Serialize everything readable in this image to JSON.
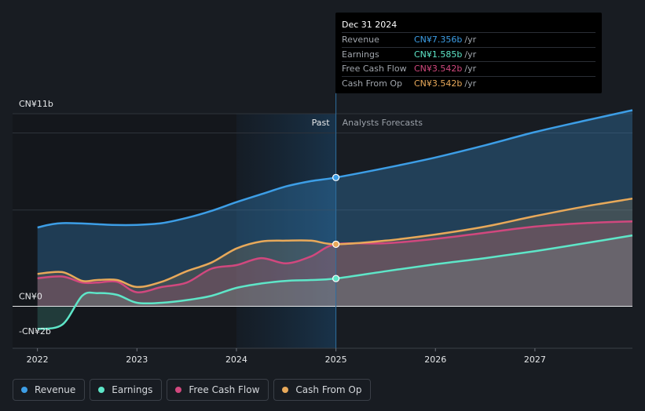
{
  "chart_data": {
    "type": "area",
    "title": "",
    "xlabel": "",
    "ylabel": "",
    "ylim": [
      -2.4,
      11.0
    ],
    "xlim": [
      2021.75,
      2027.98
    ],
    "y_axis_labels": [
      "CN¥11b",
      "CN¥0",
      "-CN¥2b"
    ],
    "y_axis_label_values": [
      11,
      0,
      -2
    ],
    "x_ticks": [
      2022,
      2023,
      2024,
      2025,
      2026,
      2027
    ],
    "x_tick_labels": [
      "2022",
      "2023",
      "2024",
      "2025",
      "2026",
      "2027"
    ],
    "divider_x": 2025.0,
    "highlight_range": [
      2024.0,
      2025.0
    ],
    "past_label": "Past",
    "forecast_label": "Analysts Forecasts",
    "series": [
      {
        "name": "Revenue",
        "color": "#3d9ee6",
        "past": [
          [
            2022.0,
            4.5
          ],
          [
            2022.25,
            4.75
          ],
          [
            2022.75,
            4.65
          ],
          [
            2023.0,
            4.65
          ],
          [
            2023.25,
            4.75
          ],
          [
            2023.5,
            5.05
          ],
          [
            2023.75,
            5.45
          ],
          [
            2024.0,
            5.95
          ],
          [
            2024.25,
            6.4
          ],
          [
            2024.5,
            6.85
          ],
          [
            2024.75,
            7.15
          ],
          [
            2025.0,
            7.356
          ]
        ],
        "forecast": [
          [
            2025.0,
            7.356
          ],
          [
            2025.5,
            7.9
          ],
          [
            2026.0,
            8.5
          ],
          [
            2026.5,
            9.2
          ],
          [
            2027.0,
            9.95
          ],
          [
            2027.5,
            10.6
          ],
          [
            2027.98,
            11.2
          ]
        ]
      },
      {
        "name": "Earnings",
        "color": "#5ee6c8",
        "past": [
          [
            2022.0,
            -1.3
          ],
          [
            2022.25,
            -1.05
          ],
          [
            2022.45,
            0.6
          ],
          [
            2022.6,
            0.75
          ],
          [
            2022.8,
            0.65
          ],
          [
            2023.0,
            0.2
          ],
          [
            2023.25,
            0.2
          ],
          [
            2023.5,
            0.35
          ],
          [
            2023.75,
            0.6
          ],
          [
            2024.0,
            1.05
          ],
          [
            2024.25,
            1.3
          ],
          [
            2024.5,
            1.45
          ],
          [
            2024.75,
            1.5
          ],
          [
            2025.0,
            1.585
          ]
        ],
        "forecast": [
          [
            2025.0,
            1.585
          ],
          [
            2025.5,
            2.0
          ],
          [
            2026.0,
            2.4
          ],
          [
            2026.5,
            2.75
          ],
          [
            2027.0,
            3.15
          ],
          [
            2027.5,
            3.6
          ],
          [
            2027.98,
            4.05
          ]
        ]
      },
      {
        "name": "Free Cash Flow",
        "color": "#d1487e",
        "past": [
          [
            2022.0,
            1.6
          ],
          [
            2022.25,
            1.7
          ],
          [
            2022.45,
            1.35
          ],
          [
            2022.6,
            1.35
          ],
          [
            2022.8,
            1.4
          ],
          [
            2023.0,
            0.8
          ],
          [
            2023.25,
            1.1
          ],
          [
            2023.5,
            1.35
          ],
          [
            2023.75,
            2.15
          ],
          [
            2024.0,
            2.35
          ],
          [
            2024.25,
            2.75
          ],
          [
            2024.5,
            2.45
          ],
          [
            2024.75,
            2.85
          ],
          [
            2025.0,
            3.542
          ]
        ],
        "forecast": [
          [
            2025.0,
            3.542
          ],
          [
            2025.5,
            3.6
          ],
          [
            2026.0,
            3.85
          ],
          [
            2026.5,
            4.2
          ],
          [
            2027.0,
            4.55
          ],
          [
            2027.5,
            4.75
          ],
          [
            2027.98,
            4.85
          ]
        ]
      },
      {
        "name": "Cash From Op",
        "color": "#e8a95a",
        "past": [
          [
            2022.0,
            1.85
          ],
          [
            2022.25,
            1.95
          ],
          [
            2022.45,
            1.45
          ],
          [
            2022.6,
            1.5
          ],
          [
            2022.8,
            1.5
          ],
          [
            2023.0,
            1.1
          ],
          [
            2023.25,
            1.4
          ],
          [
            2023.5,
            2.0
          ],
          [
            2023.75,
            2.5
          ],
          [
            2024.0,
            3.3
          ],
          [
            2024.25,
            3.7
          ],
          [
            2024.5,
            3.75
          ],
          [
            2024.75,
            3.75
          ],
          [
            2025.0,
            3.542
          ]
        ],
        "forecast": [
          [
            2025.0,
            3.542
          ],
          [
            2025.5,
            3.75
          ],
          [
            2026.0,
            4.1
          ],
          [
            2026.5,
            4.55
          ],
          [
            2027.0,
            5.15
          ],
          [
            2027.5,
            5.7
          ],
          [
            2027.98,
            6.15
          ]
        ]
      }
    ],
    "tooltip": {
      "date": "Dec 31 2024",
      "rows": [
        {
          "label": "Revenue",
          "value": "CN¥7.356b",
          "unit": "/yr",
          "color": "#3d9ee6"
        },
        {
          "label": "Earnings",
          "value": "CN¥1.585b",
          "unit": "/yr",
          "color": "#5ee6c8"
        },
        {
          "label": "Free Cash Flow",
          "value": "CN¥3.542b",
          "unit": "/yr",
          "color": "#d1487e"
        },
        {
          "label": "Cash From Op",
          "value": "CN¥3.542b",
          "unit": "/yr",
          "color": "#e8a95a"
        }
      ]
    }
  },
  "legend": [
    {
      "label": "Revenue",
      "color": "#3d9ee6"
    },
    {
      "label": "Earnings",
      "color": "#5ee6c8"
    },
    {
      "label": "Free Cash Flow",
      "color": "#d1487e"
    },
    {
      "label": "Cash From Op",
      "color": "#e8a95a"
    }
  ]
}
